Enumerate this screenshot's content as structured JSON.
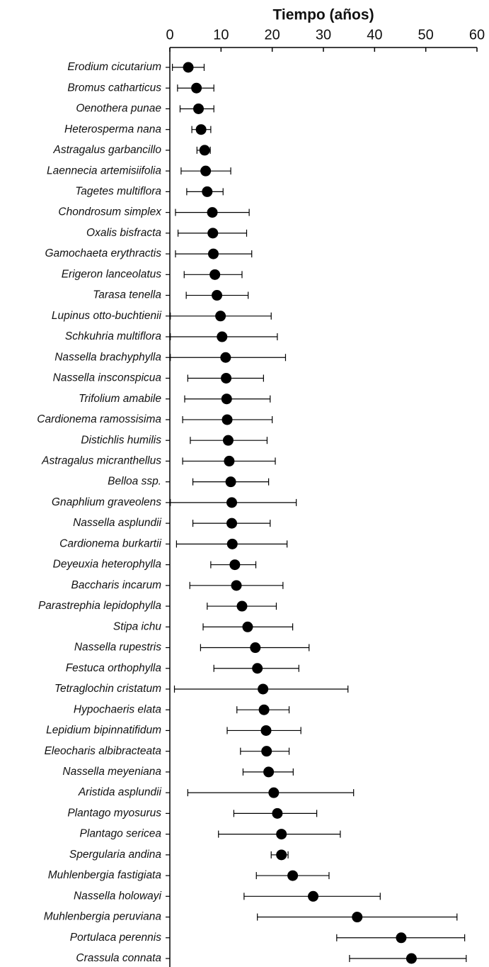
{
  "chart_data": {
    "type": "dot-errorbar",
    "title": "Tiempo (años)",
    "categories": [
      "Erodium cicutarium",
      "Bromus catharticus",
      "Oenothera punae",
      "Heterosperma nana",
      "Astragalus garbancillo",
      "Laennecia artemisiifolia",
      "Tagetes multiflora",
      "Chondrosum simplex",
      "Oxalis bisfracta",
      "Gamochaeta erythractis",
      "Erigeron lanceolatus",
      "Tarasa tenella",
      "Lupinus otto-buchtienii",
      "Schkuhria multiflora",
      "Nassella brachyphylla",
      "Nassella insconspicua",
      "Trifolium amabile",
      "Cardionema ramossisima",
      "Distichlis humilis",
      "Astragalus micranthellus",
      "Belloa ssp.",
      "Gnaphlium graveolens",
      "Nassella asplundii",
      "Cardionema burkartii",
      "Deyeuxia heterophylla",
      "Baccharis incarum",
      "Parastrephia lepidophylla",
      "Stipa ichu",
      "Nassella rupestris",
      "Festuca orthophylla",
      "Tetraglochin cristatum",
      "Hypochaeris elata",
      "Lepidium bipinnatifidum",
      "Eleocharis albibracteata",
      "Nassella meyeniana",
      "Aristida asplundii",
      "Plantago myosurus",
      "Plantago sericea",
      "Spergularia andina",
      "Muhlenbergia fastigiata",
      "Nassella holowayi",
      "Muhlenbergia peruviana",
      "Portulaca perennis",
      "Crassula connata"
    ],
    "values": [
      3.6,
      5.2,
      5.6,
      6.1,
      6.8,
      7.0,
      7.3,
      8.3,
      8.4,
      8.5,
      8.8,
      9.2,
      9.9,
      10.2,
      10.9,
      11.0,
      11.1,
      11.2,
      11.4,
      11.6,
      11.9,
      12.1,
      12.1,
      12.2,
      12.7,
      13.0,
      14.1,
      15.2,
      16.7,
      17.1,
      18.2,
      18.4,
      18.8,
      18.9,
      19.3,
      20.3,
      21.0,
      21.8,
      21.8,
      24.0,
      28.0,
      36.6,
      45.2,
      47.2
    ],
    "low": [
      0.5,
      1.5,
      2.0,
      4.3,
      5.3,
      2.2,
      3.3,
      1.1,
      1.6,
      1.1,
      2.8,
      3.2,
      0.1,
      0.1,
      0.1,
      3.5,
      2.9,
      2.5,
      4.0,
      2.5,
      4.5,
      0.1,
      4.5,
      1.3,
      8.0,
      3.9,
      7.3,
      6.5,
      6.0,
      8.6,
      0.9,
      13.1,
      11.2,
      13.8,
      14.3,
      3.5,
      12.5,
      9.5,
      19.8,
      16.9,
      14.5,
      17.1,
      32.6,
      35.1
    ],
    "high": [
      6.7,
      8.6,
      8.6,
      8.0,
      7.9,
      11.9,
      10.4,
      15.5,
      15.0,
      16.0,
      14.1,
      15.3,
      19.8,
      21.0,
      22.6,
      18.3,
      19.6,
      20.0,
      19.0,
      20.6,
      19.3,
      24.7,
      19.6,
      22.9,
      16.8,
      22.1,
      20.8,
      24.0,
      27.2,
      25.2,
      34.8,
      23.3,
      25.6,
      23.3,
      24.1,
      35.9,
      28.7,
      33.3,
      23.1,
      31.1,
      41.1,
      56.1,
      57.6,
      57.9
    ],
    "color": "#000000",
    "xlim": [
      0,
      60
    ],
    "xticks": [
      0,
      10,
      20,
      30,
      40,
      50,
      60
    ]
  }
}
